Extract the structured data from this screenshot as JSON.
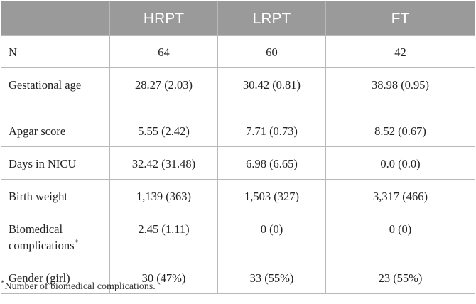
{
  "table": {
    "headers": [
      "",
      "HRPT",
      "LRPT",
      "FT"
    ],
    "rows": [
      {
        "label": "N",
        "values": [
          "64",
          "60",
          "42"
        ]
      },
      {
        "label": "Gestational age",
        "values": [
          "28.27 (2.03)",
          "30.42 (0.81)",
          "38.98 (0.95)"
        ]
      },
      {
        "label": "Apgar score",
        "values": [
          "5.55 (2.42)",
          "7.71 (0.73)",
          "8.52 (0.67)"
        ]
      },
      {
        "label": "Days in NICU",
        "values": [
          "32.42 (31.48)",
          "6.98 (6.65)",
          "0.0 (0.0)"
        ]
      },
      {
        "label": "Birth weight",
        "values": [
          "1,139 (363)",
          "1,503 (327)",
          "3,317 (466)"
        ]
      },
      {
        "label": "Biomedical complications*",
        "values": [
          "2.45 (1.11)",
          "0 (0)",
          "0 (0)"
        ]
      },
      {
        "label": "Gender (girl)",
        "values": [
          "30 (47%)",
          "33 (55%)",
          "23 (55%)"
        ]
      }
    ]
  },
  "footnote": "*Number of biomedical complications."
}
